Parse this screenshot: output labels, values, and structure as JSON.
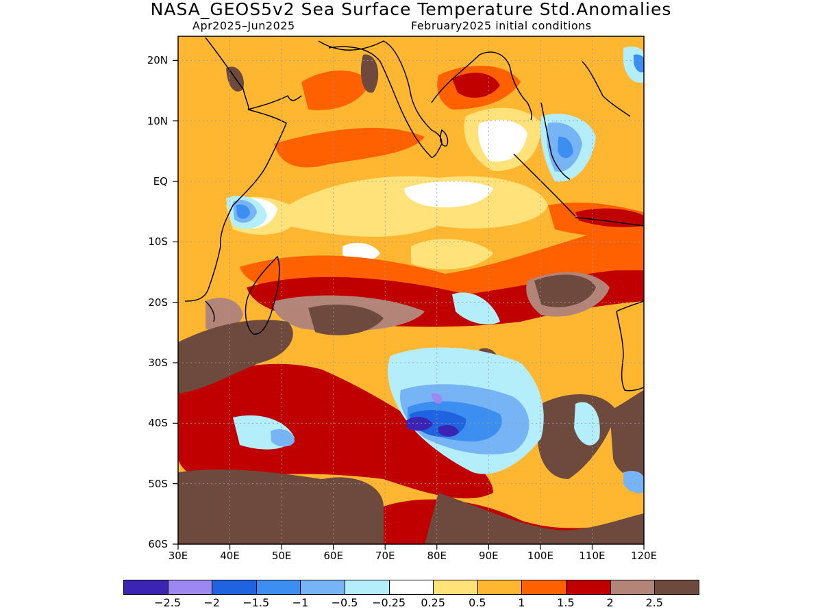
{
  "title": "NASA_GEOS5v2 Sea Surface Temperature Std.Anomalies",
  "subtitle_left": "Apr2025–Jun2025",
  "subtitle_right": "February2025 initial conditions",
  "map": {
    "lon_range": [
      30,
      120
    ],
    "lat_range": [
      -60,
      24
    ],
    "ocean_default_color": "#ffb732",
    "land_color": "#ffb732",
    "coastline_color": "#000000",
    "lat_labels": [
      "20N",
      "10N",
      "EQ",
      "10S",
      "20S",
      "30S",
      "40S",
      "50S",
      "60S"
    ],
    "lat_values": [
      20,
      10,
      0,
      -10,
      -20,
      -30,
      -40,
      -50,
      -60
    ],
    "lon_labels": [
      "30E",
      "40E",
      "50E",
      "60E",
      "70E",
      "80E",
      "90E",
      "100E",
      "110E",
      "120E"
    ],
    "lon_values": [
      30,
      40,
      50,
      60,
      70,
      80,
      90,
      100,
      110,
      120
    ]
  },
  "colorbar": {
    "colors": [
      "#3b24b4",
      "#9c88f0",
      "#1f63e0",
      "#3c8ef0",
      "#77b4f5",
      "#b4eefa",
      "#ffffff",
      "#ffe27a",
      "#ffb732",
      "#ff6000",
      "#c00000",
      "#b38478",
      "#6e4a3e"
    ],
    "labels": [
      "−2.5",
      "−2",
      "−1.5",
      "−1",
      "−0.5",
      "−0.25",
      "0.25",
      "0.5",
      "1",
      "1.5",
      "2",
      "2.5"
    ]
  },
  "anomaly_regions": [
    {
      "level": 2.5,
      "note": "southern Indian Ocean warm belt",
      "lon": [
        30,
        52
      ],
      "lat": [
        -60,
        -30
      ]
    },
    {
      "level": 2.5,
      "lon": [
        100,
        112
      ],
      "lat": [
        -25,
        -15
      ]
    },
    {
      "level": 2.5,
      "lon": [
        110,
        120
      ],
      "lat": [
        -60,
        -34
      ]
    },
    {
      "level": 2.5,
      "lon": [
        75,
        100
      ],
      "lat": [
        -60,
        -48
      ]
    },
    {
      "level": -2.5,
      "note": "cold core",
      "lon": [
        77,
        85
      ],
      "lat": [
        -42,
        -39
      ]
    },
    {
      "level": -1.5,
      "lon": [
        75,
        97
      ],
      "lat": [
        -46,
        -34
      ]
    },
    {
      "level": -1.5,
      "lon": [
        41,
        46
      ],
      "lat": [
        -8,
        -3
      ]
    },
    {
      "level": -1.5,
      "lon": [
        100,
        110
      ],
      "lat": [
        0,
        12
      ]
    },
    {
      "level": 0.25,
      "lon": [
        88,
        98
      ],
      "lat": [
        0,
        12
      ]
    }
  ]
}
